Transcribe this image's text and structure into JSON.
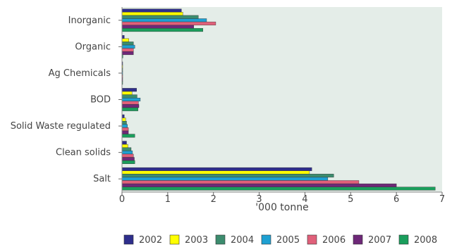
{
  "chart_data": {
    "type": "bar",
    "orientation": "horizontal",
    "categories": [
      "Inorganic",
      "Organic",
      "Ag Chemicals",
      "BOD",
      "Solid Waste regulated",
      "Clean solids",
      "Salt"
    ],
    "series": [
      {
        "name": "2002",
        "color": "#2e2e8c",
        "values": [
          1.3,
          0.05,
          0.01,
          0.32,
          0.05,
          0.1,
          4.15
        ]
      },
      {
        "name": "2003",
        "color": "#ffff00",
        "values": [
          1.33,
          0.15,
          0.01,
          0.22,
          0.08,
          0.13,
          4.1
        ]
      },
      {
        "name": "2004",
        "color": "#3c8c6e",
        "values": [
          1.67,
          0.25,
          0.01,
          0.33,
          0.1,
          0.2,
          4.63
        ]
      },
      {
        "name": "2005",
        "color": "#1ea0d2",
        "values": [
          1.85,
          0.28,
          0.01,
          0.4,
          0.12,
          0.23,
          4.5
        ]
      },
      {
        "name": "2006",
        "color": "#e0607a",
        "values": [
          2.05,
          0.25,
          0.01,
          0.36,
          0.14,
          0.25,
          5.18
        ]
      },
      {
        "name": "2007",
        "color": "#6e2878",
        "values": [
          1.57,
          0.25,
          0.01,
          0.37,
          0.14,
          0.27,
          6.0
        ]
      },
      {
        "name": "2008",
        "color": "#1a9e5c",
        "values": [
          1.77,
          0.02,
          0.01,
          0.35,
          0.28,
          0.28,
          6.85
        ]
      }
    ],
    "xlabel": "'000 tonne",
    "ylabel": "",
    "xlim": [
      0,
      7
    ],
    "xticks": [
      "0",
      "1",
      "2",
      "3",
      "4",
      "5",
      "6",
      "7"
    ],
    "grid": false,
    "legend_position": "bottom",
    "plot_background": "#e4ede8"
  }
}
